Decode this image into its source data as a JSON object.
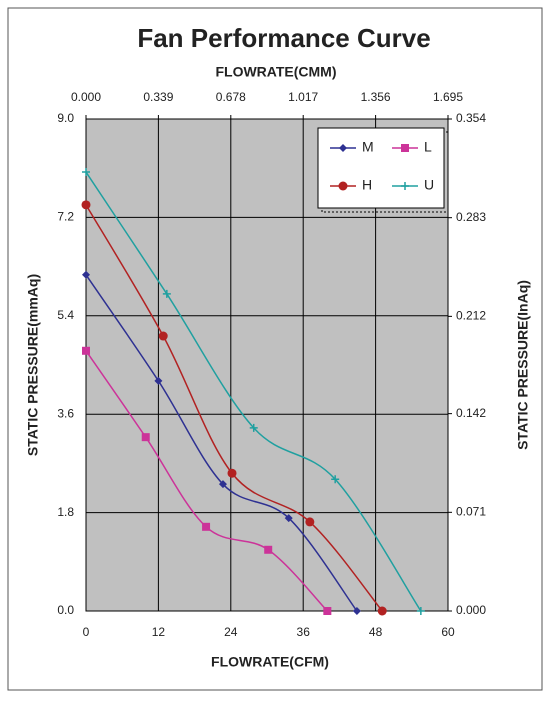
{
  "chart_data": {
    "type": "line",
    "title": "Fan Performance Curve",
    "x_label": "FLOWRATE(CFM)",
    "x2_label": "FLOWRATE(CMM)",
    "y_label": "STATIC PRESSURE(mmAq)",
    "y2_label": "STATIC PRESSURE(InAq)",
    "xlim": [
      0,
      60
    ],
    "xticks": [
      0,
      12,
      24,
      36,
      48,
      60
    ],
    "x2lim": [
      0,
      1.695
    ],
    "x2ticks": [
      {
        "value": 0,
        "label": "0.000"
      },
      0.339,
      0.678,
      1.017,
      1.356,
      1.695
    ],
    "ylim": [
      0,
      9
    ],
    "yticks": [
      {
        "value": 0,
        "label": "0.0"
      },
      1.8,
      3.6,
      5.4,
      7.2,
      {
        "value": 9,
        "label": "9.0"
      }
    ],
    "y2lim": [
      0,
      0.354
    ],
    "y2ticks": [
      {
        "value": 0,
        "label": "0.000"
      },
      0.071,
      0.142,
      0.212,
      0.283,
      0.354
    ],
    "grid": true,
    "legend": "upper right",
    "series": [
      {
        "name": "M",
        "color": "#2e3192",
        "marker": "diamond",
        "x": [
          0,
          12,
          22.7,
          33.6,
          44.9
        ],
        "values": [
          6.15,
          4.21,
          2.32,
          1.7,
          0
        ]
      },
      {
        "name": "L",
        "color": "#cc3399",
        "marker": "square",
        "x": [
          0,
          9.9,
          19.9,
          30.2,
          40
        ],
        "values": [
          4.76,
          3.18,
          1.54,
          1.12,
          0
        ]
      },
      {
        "name": "H",
        "color": "#b22222",
        "marker": "circle",
        "x": [
          0,
          12.8,
          24.2,
          37.1,
          49.1
        ],
        "values": [
          7.43,
          5.03,
          2.52,
          1.63,
          0
        ]
      },
      {
        "name": "U",
        "color": "#20a0a0",
        "marker": "plus",
        "x": [
          0,
          13.4,
          27.8,
          41.3,
          55.5
        ],
        "values": [
          8.03,
          5.8,
          3.35,
          2.41,
          0
        ]
      }
    ]
  }
}
